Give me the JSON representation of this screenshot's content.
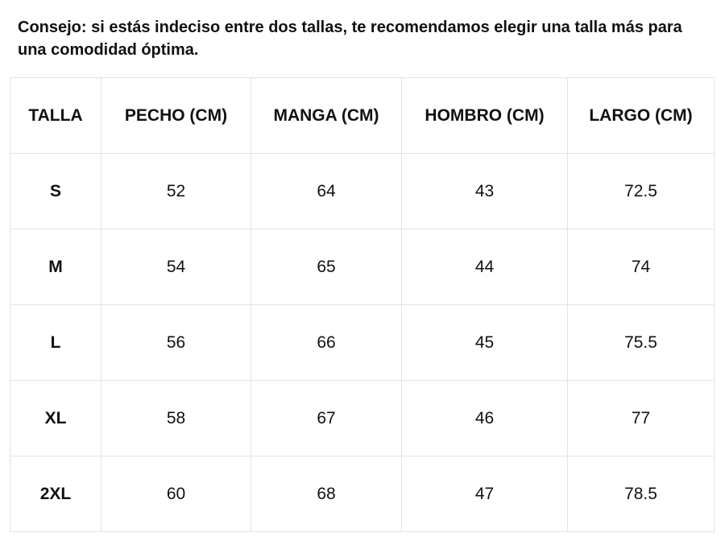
{
  "tip": {
    "text": "Consejo: si estás indeciso entre dos tallas, te recomendamos elegir una talla más para una comodidad óptima."
  },
  "size_table": {
    "headers": [
      "TALLA",
      "PECHO (CM)",
      "MANGA (CM)",
      "HOMBRO (CM)",
      "LARGO (CM)"
    ],
    "rows": [
      [
        "S",
        "52",
        "64",
        "43",
        "72.5"
      ],
      [
        "M",
        "54",
        "65",
        "44",
        "74"
      ],
      [
        "L",
        "56",
        "66",
        "45",
        "75.5"
      ],
      [
        "XL",
        "58",
        "67",
        "46",
        "77"
      ],
      [
        "2XL",
        "60",
        "68",
        "47",
        "78.5"
      ]
    ]
  }
}
